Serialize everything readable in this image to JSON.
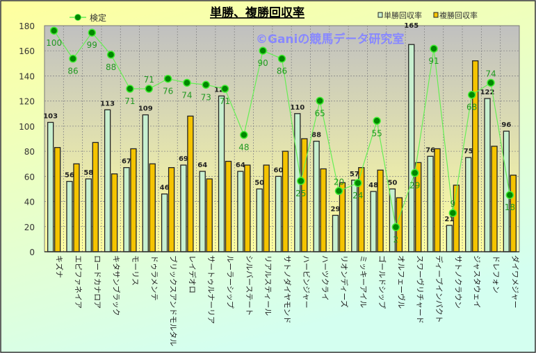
{
  "colors": {
    "win_bar": "#c8f0d0",
    "place_bar": "#f5c400",
    "line": "#66ee55",
    "marker": "#008800",
    "line_label": "#229922",
    "watermark": "#8888ff"
  },
  "chart_data": {
    "type": "bar",
    "title": "単勝、複勝回収率",
    "watermark": "©Ganiの競馬データ研究室",
    "xlabel": "",
    "ylabel": "",
    "ylim": [
      0,
      180
    ],
    "yticks": [
      0,
      20,
      40,
      60,
      80,
      100,
      120,
      140,
      160,
      180
    ],
    "y2lim": [
      -10.3,
      102.5
    ],
    "grid": true,
    "legend": {
      "line_position": "top-left",
      "bars_position": "top-right"
    },
    "categories": [
      "キズナ",
      "エピファネイア",
      "ロードカナロア",
      "キタサンブラック",
      "モーリス",
      "ドゥラメンテ",
      "ブリックスアンドモルタル",
      "レイデオロ",
      "サートゥルナーリア",
      "ルーラーシップ",
      "シルバーステート",
      "リアルスティール",
      "サトノダイヤモンド",
      "ハービンジャー",
      "ハーツクライ",
      "リオンディーズ",
      "ミッキーアイル",
      "ゴールドシップ",
      "オルフェーヴル",
      "スワーヴリチャード",
      "ディープインパクト",
      "サトノクラウン",
      "ジャスタウェイ",
      "ドレフォン",
      "ダイワメジャー"
    ],
    "series": [
      {
        "name": "単勝回収率",
        "type": "bar",
        "values": [
          103,
          56,
          58,
          113,
          67,
          109,
          46,
          69,
          64,
          124,
          64,
          50,
          60,
          110,
          88,
          29,
          57,
          48,
          50,
          165,
          76,
          21,
          75,
          122,
          96
        ]
      },
      {
        "name": "複勝回収率",
        "type": "bar",
        "values": [
          83,
          70,
          87,
          62,
          82,
          70,
          67,
          108,
          58,
          72,
          69,
          69,
          80,
          90,
          66,
          55,
          67,
          65,
          43,
          71,
          82,
          53,
          152,
          84,
          61
        ]
      },
      {
        "name": "検定",
        "type": "line",
        "axis": "secondary",
        "values": [
          100,
          86,
          99,
          88,
          71,
          71,
          76,
          74,
          73,
          71,
          48,
          90,
          86,
          25,
          65,
          20,
          24,
          55,
          2,
          29,
          91,
          9,
          68,
          74,
          18
        ]
      }
    ]
  }
}
